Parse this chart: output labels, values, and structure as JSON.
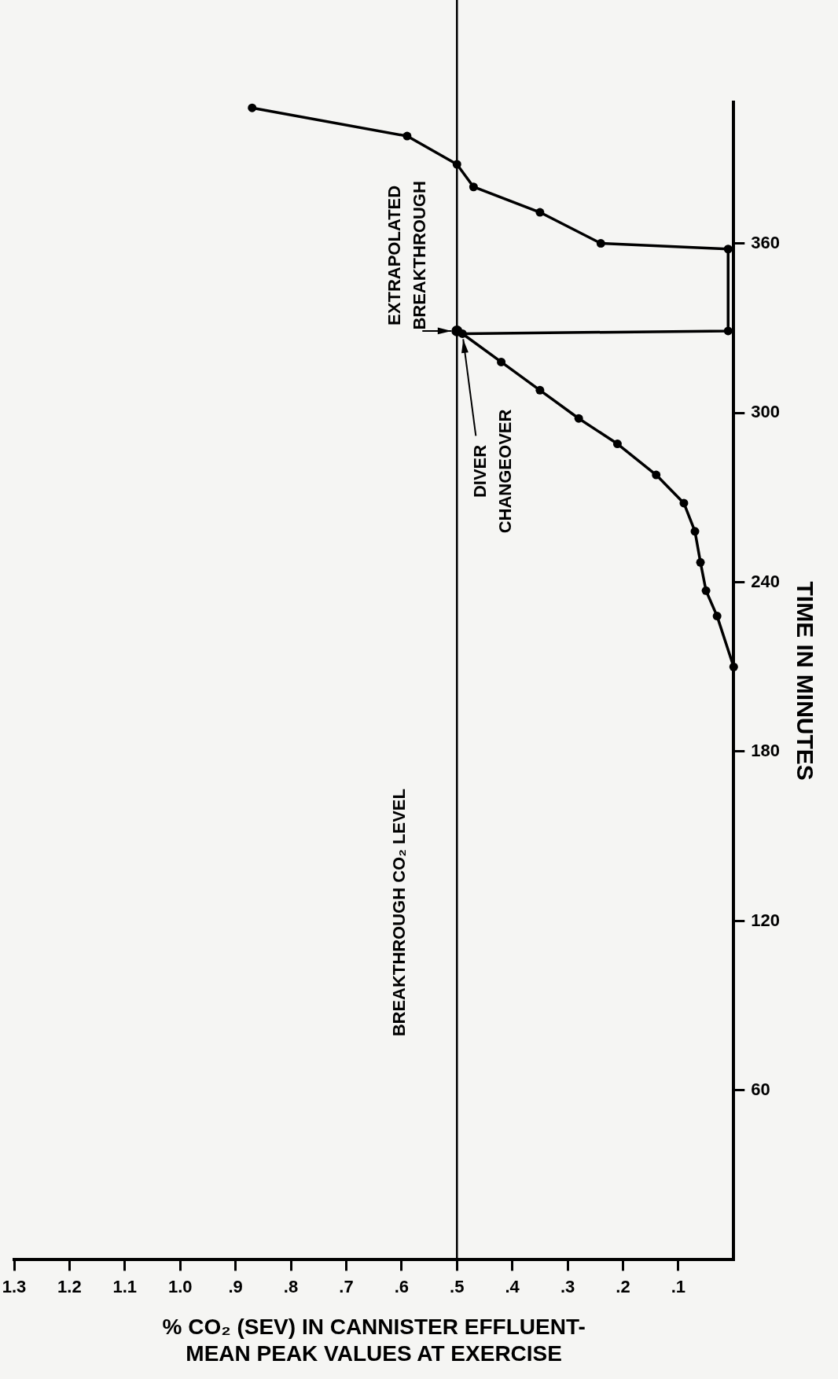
{
  "chart_data": {
    "type": "line",
    "xlabel": "% CO₂ (SEV) IN CANNISTER EFFLUENT-\nMEAN PEAK VALUES AT EXERCISE",
    "ylabel": "TIME IN MINUTES",
    "ylim": [
      0,
      410
    ],
    "yticks": [
      60,
      120,
      180,
      240,
      300,
      360
    ],
    "xlim": [
      1.3,
      0
    ],
    "xticks": [
      {
        "value": 0.1,
        "label": ".1"
      },
      {
        "value": 0.2,
        "label": ".2"
      },
      {
        "value": 0.3,
        "label": ".3"
      },
      {
        "value": 0.4,
        "label": ".4"
      },
      {
        "value": 0.5,
        "label": ".5"
      },
      {
        "value": 0.6,
        "label": ".6"
      },
      {
        "value": 0.7,
        "label": ".7"
      },
      {
        "value": 0.8,
        "label": ".8"
      },
      {
        "value": 0.9,
        "label": ".9"
      },
      {
        "value": 1.0,
        "label": "1.0"
      },
      {
        "value": 1.1,
        "label": "1.1"
      },
      {
        "value": 1.2,
        "label": "1.2"
      },
      {
        "value": 1.3,
        "label": "1.3"
      }
    ],
    "series": [
      {
        "color": "#000000",
        "x": [
          0.0,
          0.03,
          0.05,
          0.06,
          0.07,
          0.09,
          0.14,
          0.21,
          0.28,
          0.35,
          0.42,
          0.49,
          0.01,
          0.01,
          0.24,
          0.35,
          0.47,
          0.5,
          0.59,
          0.87
        ],
        "values": [
          210,
          228,
          237,
          247,
          258,
          268,
          278,
          289,
          298,
          308,
          318,
          328,
          329,
          358,
          360,
          371,
          380,
          388,
          398,
          408
        ]
      },
      {
        "type": "scatter",
        "color": "#000000",
        "x": [
          0.5
        ],
        "values": [
          329
        ]
      }
    ],
    "ref_lines": [
      {
        "axis": "x",
        "value": 0.5,
        "label": "BREAKTHROUGH CO₂ LEVEL",
        "color": "#000000"
      }
    ],
    "annotations": [
      {
        "text": "EXTRAPOLATED\nBREAKTHROUGH",
        "x": 0.5,
        "y": 329
      },
      {
        "text": "DIVER\nCHANGEOVER",
        "x": 0.49,
        "y": 328
      }
    ],
    "grid": false,
    "legend": false,
    "marker": "circle",
    "line_style": "solid"
  }
}
